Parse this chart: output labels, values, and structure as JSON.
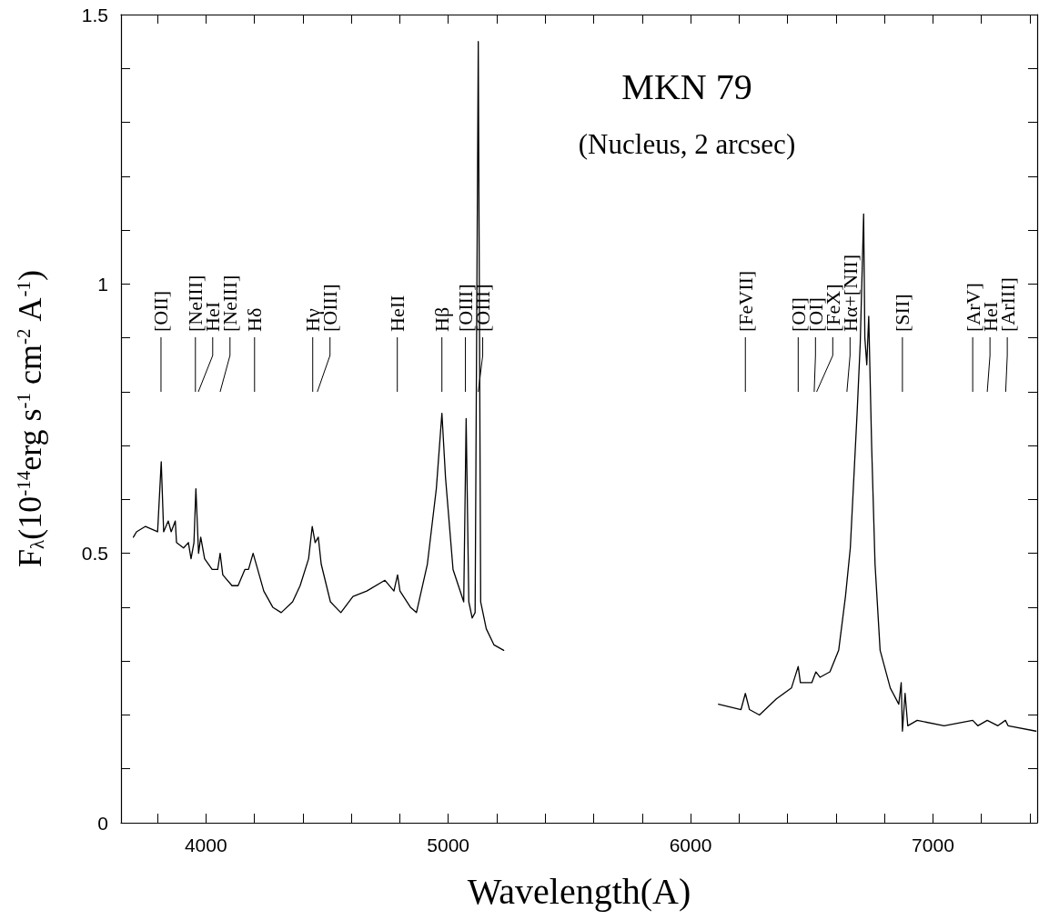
{
  "chart_data": {
    "type": "line",
    "title": "MKN 79",
    "subtitle": "(Nucleus, 2 arcsec)",
    "xlabel": "Wavelength(A)",
    "ylabel": "F$_{λ}$(10$^{-14}$erg s$^{-1}$ cm$^{-2}$ A$^{-1}$)",
    "xlim": [
      3650,
      7430
    ],
    "ylim": [
      0,
      1.5
    ],
    "xticks": [
      {
        "value": 3800,
        "label": null
      },
      4000,
      {
        "value": 4200,
        "label": null
      },
      {
        "value": 4400,
        "label": null
      },
      {
        "value": 4600,
        "label": null
      },
      {
        "value": 4800,
        "label": null
      },
      5000,
      {
        "value": 5200,
        "label": null
      },
      {
        "value": 5400,
        "label": null
      },
      {
        "value": 5600,
        "label": null
      },
      {
        "value": 5800,
        "label": null
      },
      6000,
      {
        "value": 6200,
        "label": null
      },
      {
        "value": 6400,
        "label": null
      },
      {
        "value": 6600,
        "label": null
      },
      {
        "value": 6800,
        "label": null
      },
      7000,
      {
        "value": 7200,
        "label": null
      },
      {
        "value": 7400,
        "label": null
      }
    ],
    "yticks": [
      0,
      {
        "value": 0.1,
        "label": null
      },
      {
        "value": 0.2,
        "label": null
      },
      {
        "value": 0.3,
        "label": null
      },
      {
        "value": 0.4,
        "label": null
      },
      0.5,
      {
        "value": 0.6,
        "label": null
      },
      {
        "value": 0.7,
        "label": null
      },
      {
        "value": 0.8,
        "label": null
      },
      {
        "value": 0.9,
        "label": null
      },
      1,
      {
        "value": 1.1,
        "label": null
      },
      {
        "value": 1.2,
        "label": null
      },
      {
        "value": 1.3,
        "label": null
      },
      {
        "value": 1.4,
        "label": null
      },
      1.5
    ],
    "marker": "none",
    "line_style": "solid",
    "series": [
      {
        "color": "#000000",
        "x": [
          3701,
          3714,
          3751,
          3801,
          3816,
          3826,
          3845,
          3857,
          3874,
          3879,
          3908,
          3928,
          3939,
          3951,
          3959,
          3970,
          3979,
          3995,
          4026,
          4049,
          4059,
          4070,
          4108,
          4133,
          4161,
          4176,
          4195,
          4214,
          4239,
          4276,
          4311,
          4358,
          4389,
          4424,
          4439,
          4451,
          4464,
          4476,
          4514,
          4557,
          4607,
          4664,
          4739,
          4776,
          4791,
          4801,
          4844,
          4869,
          4914,
          4951,
          4974,
          4989,
          5020,
          5064,
          5074,
          5085,
          5099,
          5111,
          5124,
          5134,
          5157,
          5189,
          5229,
          5700,
          6115,
          6208,
          6226,
          6243,
          6284,
          6354,
          6416,
          6444,
          6453,
          6500,
          6517,
          6534,
          6575,
          6611,
          6639,
          6659,
          6687,
          6700,
          6714,
          6719,
          6727,
          6735,
          6747,
          6761,
          6782,
          6824,
          6859,
          6869,
          6874,
          6885,
          6896,
          6935,
          7046,
          7164,
          7185,
          7224,
          7268,
          7299,
          7310,
          7425
        ],
        "values": [
          0.53,
          0.54,
          0.55,
          0.54,
          0.67,
          0.54,
          0.56,
          0.54,
          0.56,
          0.52,
          0.51,
          0.52,
          0.49,
          0.52,
          0.62,
          0.5,
          0.53,
          0.49,
          0.47,
          0.47,
          0.5,
          0.46,
          0.44,
          0.44,
          0.47,
          0.47,
          0.5,
          0.47,
          0.43,
          0.4,
          0.39,
          0.41,
          0.44,
          0.49,
          0.55,
          0.52,
          0.53,
          0.48,
          0.41,
          0.39,
          0.42,
          0.43,
          0.45,
          0.43,
          0.46,
          0.43,
          0.4,
          0.39,
          0.48,
          0.62,
          0.76,
          0.64,
          0.47,
          0.41,
          0.75,
          0.41,
          0.38,
          0.39,
          1.45,
          0.41,
          0.36,
          0.33,
          0.32,
          null,
          0.22,
          0.21,
          0.24,
          0.21,
          0.2,
          0.23,
          0.25,
          0.29,
          0.26,
          0.26,
          0.28,
          0.27,
          0.28,
          0.32,
          0.42,
          0.51,
          0.76,
          0.89,
          1.13,
          0.9,
          0.85,
          0.94,
          0.7,
          0.48,
          0.32,
          0.25,
          0.22,
          0.26,
          0.17,
          0.24,
          0.18,
          0.19,
          0.18,
          0.19,
          0.18,
          0.19,
          0.18,
          0.19,
          0.18,
          0.17
        ]
      }
    ],
    "annotations": [
      {
        "text": "[OII]",
        "x": 3815
      },
      {
        "text": "[NeIII]",
        "x": 3957
      },
      {
        "text": "HeI",
        "x": 3969
      },
      {
        "text": "[NeIII]",
        "x": 4059
      },
      {
        "text": "Hδ",
        "x": 4201
      },
      {
        "text": "Hγ",
        "x": 4441
      },
      {
        "text": "[OIII]",
        "x": 4460
      },
      {
        "text": "HeII",
        "x": 4790
      },
      {
        "text": "Hβ",
        "x": 4974
      },
      {
        "text": "[OIII]",
        "x": 5071
      },
      {
        "text": "[OIII]",
        "x": 5124
      },
      {
        "text": "[FeVII]",
        "x": 6226
      },
      {
        "text": "[OI]",
        "x": 6444
      },
      {
        "text": "[OI]",
        "x": 6510
      },
      {
        "text": "[FeX]",
        "x": 6520
      },
      {
        "text": "Hα+[NII]",
        "x": 6645
      },
      {
        "text": "[SII]",
        "x": 6874
      },
      {
        "text": "[ArV]",
        "x": 7164
      },
      {
        "text": "HeI",
        "x": 7224
      },
      {
        "text": "[ArIII]",
        "x": 7300
      }
    ]
  }
}
